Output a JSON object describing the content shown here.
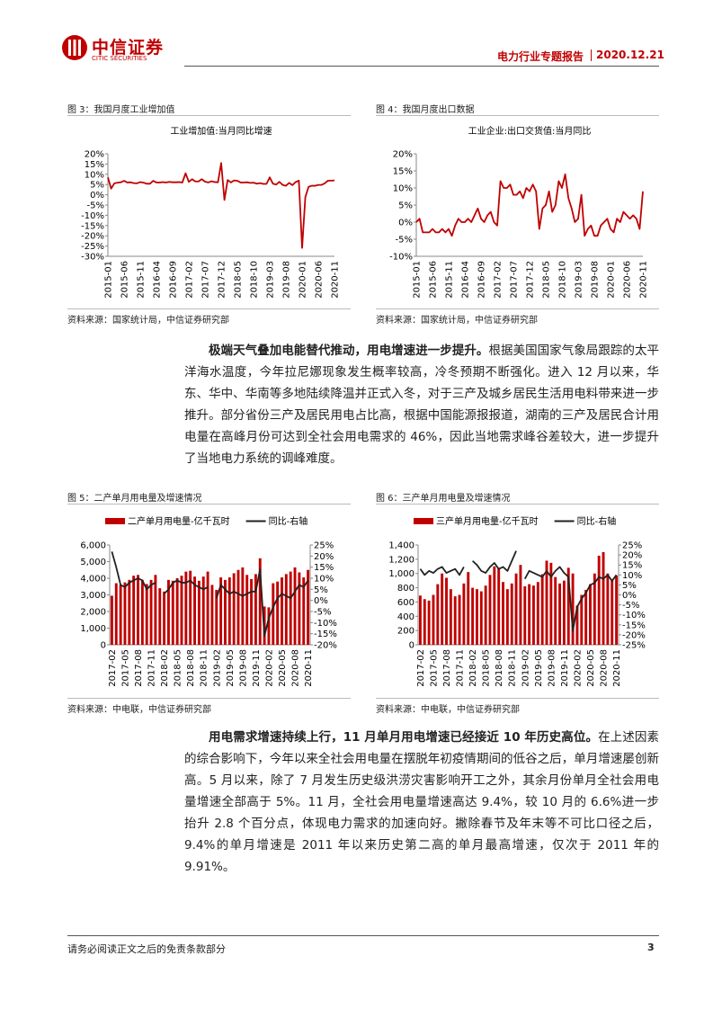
{
  "header": {
    "logo_cn": "中信证券",
    "logo_en": "CITIC SECURITIES",
    "report": "电力行业专题报告",
    "date": "2020.12.21"
  },
  "chart_data": [
    {
      "type": "line",
      "caption": "图 3：我国月度工业增加值",
      "title": "工业增加值:当月同比增速",
      "source": "资料来源：国家统计局，中信证券研究部",
      "categories": [
        "2015-01",
        null,
        null,
        null,
        null,
        "2015-06",
        null,
        null,
        null,
        null,
        "2015-11",
        null,
        null,
        null,
        null,
        "2016-04",
        null,
        null,
        null,
        null,
        "2016-09",
        null,
        null,
        null,
        null,
        "2017-02",
        null,
        null,
        null,
        null,
        "2017-07",
        null,
        null,
        null,
        null,
        "2017-12",
        null,
        null,
        null,
        null,
        "2018-05",
        null,
        null,
        null,
        null,
        "2018-10",
        null,
        null,
        null,
        null,
        "2019-03",
        null,
        null,
        null,
        null,
        "2019-08",
        null,
        null,
        null,
        null,
        "2020-01",
        null,
        null,
        null,
        null,
        "2020-06",
        null,
        null,
        null,
        null,
        "2020-11"
      ],
      "series": [
        {
          "name": null,
          "type": "line",
          "color": "#c00000",
          "values": [
            8.5,
            3,
            5.6,
            5.9,
            6.1,
            6.8,
            6.0,
            6.1,
            5.7,
            5.6,
            6.2,
            5.9,
            5.4,
            5.4,
            6.8,
            6.0,
            6.0,
            6.2,
            6.0,
            6.3,
            6.1,
            6.1,
            6.2,
            6.0,
            10.5,
            6.3,
            7.6,
            6.5,
            6.5,
            7.6,
            6.4,
            6.0,
            6.6,
            6.2,
            6.1,
            15.5,
            -2.5,
            7.2,
            6.0,
            7.0,
            6.8,
            6.0,
            6.0,
            6.1,
            5.8,
            5.9,
            5.4,
            5.7,
            5.3,
            5.3,
            8.5,
            5.4,
            5.0,
            6.3,
            4.8,
            4.4,
            5.8,
            4.7,
            6.2,
            6.9,
            -25.9,
            -1.1,
            3.9,
            4.4,
            4.4,
            4.8,
            4.8,
            5.6,
            6.9,
            6.9,
            7.0
          ]
        }
      ],
      "ylim": [
        -30,
        20
      ],
      "yticks": [
        {
          "value": -30,
          "label": "-30%"
        },
        {
          "value": -25,
          "label": "-25%"
        },
        {
          "value": -20,
          "label": "-20%"
        },
        {
          "value": -15,
          "label": "-15%"
        },
        {
          "value": -10,
          "label": "-10%"
        },
        {
          "value": -5,
          "label": "-5%"
        },
        {
          "value": 0,
          "label": "0%"
        },
        {
          "value": 5,
          "label": "5%"
        },
        {
          "value": 10,
          "label": "10%"
        },
        {
          "value": 15,
          "label": "15%"
        },
        {
          "value": 20,
          "label": "20%"
        }
      ]
    },
    {
      "type": "line",
      "caption": "图 4：我国月度出口数据",
      "title": "工业企业:出口交货值:当月同比",
      "source": "资料来源：国家统计局，中信证券研究部",
      "categories": [
        "2015-01",
        null,
        null,
        null,
        null,
        "2015-06",
        null,
        null,
        null,
        null,
        "2015-11",
        null,
        null,
        null,
        null,
        "2016-04",
        null,
        null,
        null,
        null,
        "2016-09",
        null,
        null,
        null,
        null,
        "2017-02",
        null,
        null,
        null,
        null,
        "2017-07",
        null,
        null,
        null,
        null,
        "2017-12",
        null,
        null,
        null,
        null,
        "2018-05",
        null,
        null,
        null,
        null,
        "2018-10",
        null,
        null,
        null,
        null,
        "2019-03",
        null,
        null,
        null,
        null,
        "2019-08",
        null,
        null,
        null,
        null,
        "2020-01",
        null,
        null,
        null,
        null,
        "2020-06",
        null,
        null,
        null,
        null,
        "2020-11"
      ],
      "series": [
        {
          "name": null,
          "type": "line",
          "color": "#c00000",
          "values": [
            0,
            1,
            -3,
            -3,
            -3,
            -2,
            -3,
            -3,
            -2,
            -3,
            -2,
            -4,
            -1,
            1,
            0,
            0,
            1,
            0,
            2,
            4,
            1,
            0,
            2,
            3,
            0,
            -1,
            12,
            10,
            10,
            11,
            8,
            8,
            9,
            7,
            10,
            9,
            11,
            9,
            -2,
            4,
            5,
            9,
            3,
            5,
            12,
            10,
            14,
            7,
            4,
            0,
            1,
            8,
            -4,
            -2,
            -1,
            -4,
            -4,
            -1,
            0,
            1,
            -2,
            -3,
            1,
            0,
            3,
            2,
            1,
            2,
            1,
            -2,
            9
          ]
        }
      ],
      "ylim": [
        -10,
        20
      ],
      "yticks": [
        {
          "value": -10,
          "label": "-10%"
        },
        {
          "value": -5,
          "label": "-5%"
        },
        {
          "value": 0,
          "label": "0%"
        },
        {
          "value": 5,
          "label": "5%"
        },
        {
          "value": 10,
          "label": "10%"
        },
        {
          "value": 15,
          "label": "15%"
        },
        {
          "value": 20,
          "label": "20%"
        }
      ]
    },
    {
      "type": "combo",
      "caption": "图 5：二产单月用电量及增速情况",
      "source": "资料来源：中电联，中信证券研究部",
      "categories": [
        "2017-02",
        null,
        null,
        "2017-05",
        null,
        null,
        "2017-08",
        null,
        null,
        "2017-11",
        null,
        null,
        "2018-02",
        null,
        null,
        "2018-05",
        null,
        null,
        "2018-08",
        null,
        null,
        "2018-11",
        null,
        null,
        "2019-02",
        null,
        null,
        "2019-05",
        null,
        null,
        "2019-08",
        null,
        null,
        "2019-11",
        null,
        null,
        "2020-02",
        null,
        null,
        "2020-05",
        null,
        null,
        "2020-08",
        null,
        null,
        "2020-11"
      ],
      "series": [
        {
          "name": "二产单月用电量-亿千瓦时",
          "type": "bar",
          "color": "#c00000",
          "values": [
            2950,
            3700,
            3600,
            3750,
            3900,
            4150,
            4200,
            3900,
            3650,
            3900,
            4200,
            3400,
            3200,
            3900,
            3850,
            4000,
            4150,
            4400,
            4450,
            4100,
            3850,
            4100,
            4400,
            3600,
            3300,
            4050,
            3900,
            4050,
            4300,
            4500,
            4650,
            4200,
            3950,
            4250,
            5200,
            2300,
            2250,
            3700,
            3800,
            4050,
            4250,
            4400,
            4650,
            4350,
            4050,
            4500
          ]
        },
        {
          "name": "同比-右轴",
          "type": "line",
          "axis": "y2",
          "color": "#222222",
          "values": [
            22,
            15,
            7,
            6,
            8,
            9,
            10,
            9,
            5,
            7,
            8,
            null,
            3,
            5,
            8,
            9,
            8,
            8,
            9,
            7,
            6,
            5,
            6,
            null,
            1,
            7,
            5,
            3,
            4,
            3,
            2,
            3,
            4,
            4,
            14,
            -16,
            -8,
            -3,
            1,
            3,
            2,
            1,
            4,
            7,
            6,
            9
          ]
        }
      ],
      "ylim": [
        0,
        6000
      ],
      "yticks": [
        0,
        {
          "value": 1000,
          "label": "1,000"
        },
        {
          "value": 2000,
          "label": "2,000"
        },
        {
          "value": 3000,
          "label": "3,000"
        },
        {
          "value": 4000,
          "label": "4,000"
        },
        {
          "value": 5000,
          "label": "5,000"
        },
        {
          "value": 6000,
          "label": "6,000"
        }
      ],
      "y2lim": [
        -20,
        25
      ],
      "y2ticks": [
        {
          "value": -20,
          "label": "-20%"
        },
        {
          "value": -15,
          "label": "-15%"
        },
        {
          "value": -10,
          "label": "-10%"
        },
        {
          "value": -5,
          "label": "-5%"
        },
        {
          "value": 0,
          "label": "0%"
        },
        {
          "value": 5,
          "label": "5%"
        },
        {
          "value": 10,
          "label": "10%"
        },
        {
          "value": 15,
          "label": "15%"
        },
        {
          "value": 20,
          "label": "20%"
        },
        {
          "value": 25,
          "label": "25%"
        }
      ]
    },
    {
      "type": "combo",
      "caption": "图 6：三产单月用电量及增速情况",
      "source": "资料来源：中电联，中信证券研究部",
      "categories": [
        "2017-02",
        null,
        null,
        "2017-05",
        null,
        null,
        "2017-08",
        null,
        null,
        "2017-11",
        null,
        null,
        "2018-02",
        null,
        null,
        "2018-05",
        null,
        null,
        "2018-08",
        null,
        null,
        "2018-11",
        null,
        null,
        "2019-02",
        null,
        null,
        "2019-05",
        null,
        null,
        "2019-08",
        null,
        null,
        "2019-11",
        null,
        null,
        "2020-02",
        null,
        null,
        "2020-05",
        null,
        null,
        "2020-08",
        null,
        null,
        "2020-11"
      ],
      "series": [
        {
          "name": "三产单月用电量-亿千瓦时",
          "type": "bar",
          "color": "#c00000",
          "values": [
            690,
            640,
            620,
            700,
            850,
            1000,
            940,
            780,
            680,
            700,
            860,
            1020,
            800,
            780,
            750,
            830,
            980,
            1100,
            1080,
            880,
            780,
            860,
            1000,
            1120,
            820,
            850,
            830,
            880,
            990,
            1180,
            1150,
            950,
            860,
            900,
            1080,
            1000,
            550,
            700,
            770,
            850,
            1000,
            1250,
            1300,
            1000,
            900,
            970
          ]
        },
        {
          "name": "同比-右轴",
          "type": "line",
          "axis": "y2",
          "color": "#222222",
          "values": [
            13,
            10,
            12,
            11,
            13,
            14,
            11,
            12,
            13,
            10,
            14,
            null,
            17,
            15,
            12,
            11,
            14,
            16,
            13,
            14,
            12,
            17,
            22,
            null,
            8,
            12,
            11,
            10,
            9,
            12,
            9,
            12,
            14,
            11,
            9,
            -18,
            -6,
            -2,
            1,
            5,
            6,
            9,
            8,
            10,
            7,
            10
          ]
        }
      ],
      "ylim": [
        0,
        1400
      ],
      "yticks": [
        0,
        200,
        400,
        600,
        800,
        {
          "value": 1000,
          "label": "1,000"
        },
        {
          "value": 1200,
          "label": "1,200"
        },
        {
          "value": 1400,
          "label": "1,400"
        }
      ],
      "y2lim": [
        -25,
        25
      ],
      "y2ticks": [
        {
          "value": -25,
          "label": "-25%"
        },
        {
          "value": -20,
          "label": "-20%"
        },
        {
          "value": -15,
          "label": "-15%"
        },
        {
          "value": -10,
          "label": "-10%"
        },
        {
          "value": -5,
          "label": "-5%"
        },
        {
          "value": 0,
          "label": "0%"
        },
        {
          "value": 5,
          "label": "5%"
        },
        {
          "value": 10,
          "label": "10%"
        },
        {
          "value": 15,
          "label": "15%"
        },
        {
          "value": 20,
          "label": "20%"
        },
        {
          "value": 25,
          "label": "25%"
        }
      ]
    }
  ],
  "paragraphs": [
    {
      "lead": "极端天气叠加电能替代推动，用电增速进一步提升。",
      "text": "根据美国国家气象局跟踪的太平洋海水温度，今年拉尼娜现象发生概率较高，冷冬预期不断强化。进入 12 月以来，华东、华中、华南等多地陆续降温并正式入冬，对于三产及城乡居民生活用电料带来进一步推升。部分省份三产及居民用电占比高，根据中国能源报报道，湖南的三产及居民合计用电量在高峰月份可达到全社会用电需求的 46%，因此当地需求峰谷差较大，进一步提升了当地电力系统的调峰难度。"
    },
    {
      "lead": "用电需求增速持续上行，11 月单月用电增速已经接近 10 年历史高位。",
      "text": "在上述因素的综合影响下，今年以来全社会用电量在摆脱年初疫情期间的低谷之后，单月增速屡创新高。5 月以来，除了 7 月发生历史级洪涝灾害影响开工之外，其余月份单月全社会用电量增速全部高于 5%。11 月，全社会用电量增速高达 9.4%，较 10 月的 6.6%进一步抬升 2.8 个百分点，体现电力需求的加速向好。撇除春节及年末等不可比口径之后，9.4%的单月增速是 2011 年以来历史第二高的单月最高增速，仅次于 2011 年的 9.91%。"
    }
  ],
  "footer": {
    "disclaimer": "请务必阅读正文之后的免责条款部分",
    "page": 3
  }
}
